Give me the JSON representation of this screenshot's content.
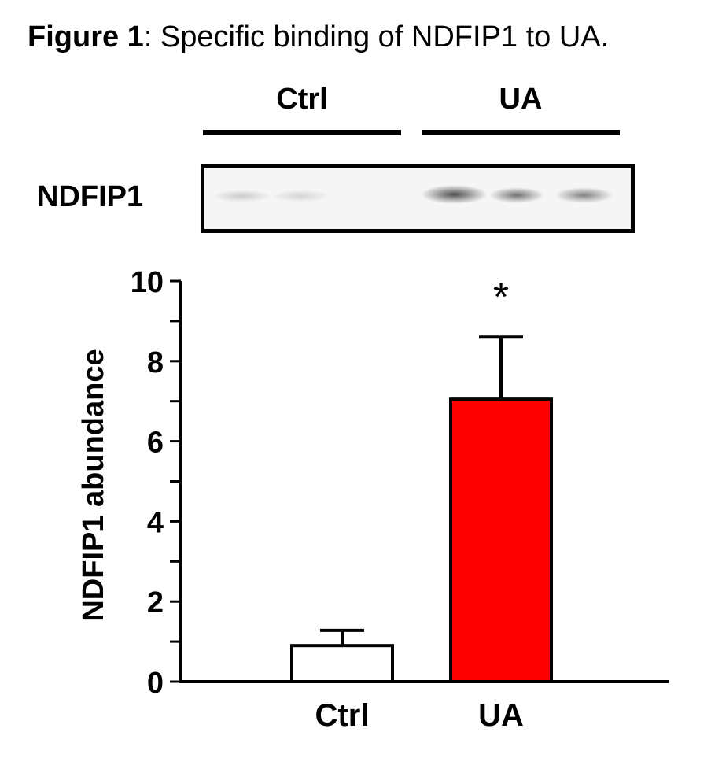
{
  "figure_caption": {
    "label": "Figure 1",
    "colon": ":",
    "text": " Specific binding of NDFIP1 to UA."
  },
  "blot": {
    "group_labels": [
      "Ctrl",
      "UA"
    ],
    "row_label": "NDFIP1"
  },
  "chart_data": {
    "type": "bar",
    "categories": [
      "Ctrl",
      "UA"
    ],
    "values": [
      0.9,
      7.05
    ],
    "error_bars": [
      0.38,
      1.55
    ],
    "colors": [
      "#ffffff",
      "#ff0000"
    ],
    "ylabel": "NDFIP1 abundance",
    "ylim": [
      0,
      10
    ],
    "yticks": [
      "0",
      "2",
      "4",
      "6",
      "8",
      "10"
    ],
    "minor_tick_step": 1,
    "significance": [
      {
        "category": "UA",
        "marker": "*"
      }
    ],
    "grid": false
  }
}
